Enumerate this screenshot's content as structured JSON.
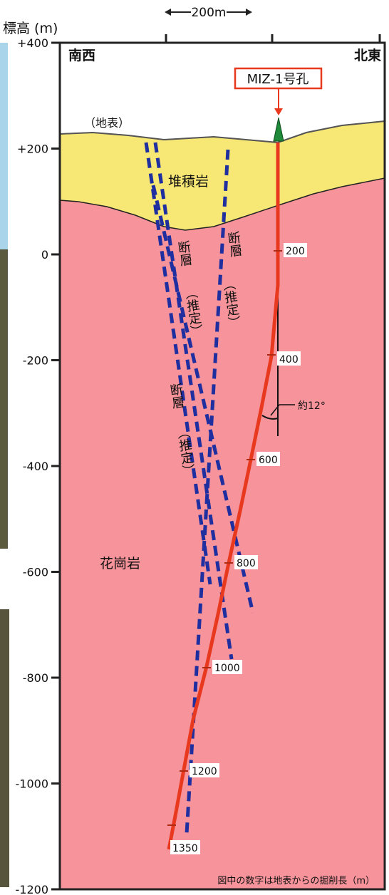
{
  "axis": {
    "title": "標高 (m)",
    "ticks": [
      "+400",
      "+200",
      "0",
      "-200",
      "-400",
      "-600",
      "-800",
      "-1000",
      "-1200"
    ]
  },
  "scale_bar": {
    "label": "200m"
  },
  "directions": {
    "left": "南西",
    "right": "北東"
  },
  "borehole": {
    "name": "MIZ-1号孔",
    "depth_labels": [
      "200",
      "400",
      "600",
      "800",
      "1000",
      "1200",
      "1350"
    ],
    "angle_label": "約12°"
  },
  "labels": {
    "surface": "（地表）",
    "sediment": "堆積岩",
    "granite": "花崗岩",
    "fault_a_1": "断層",
    "fault_a_2": "（推定）",
    "fault_b_1": "断層",
    "fault_b_2": "（推定）",
    "fault_c_1": "断層",
    "fault_c_2": "（推定）"
  },
  "note": "図中の数字は地表からの掘削長（m）",
  "colors": {
    "sediment": "#f7e774",
    "granite": "#f7939a",
    "borehole": "#e8391f",
    "fault": "#1f2fa0",
    "marker": "#1e8a3a"
  }
}
